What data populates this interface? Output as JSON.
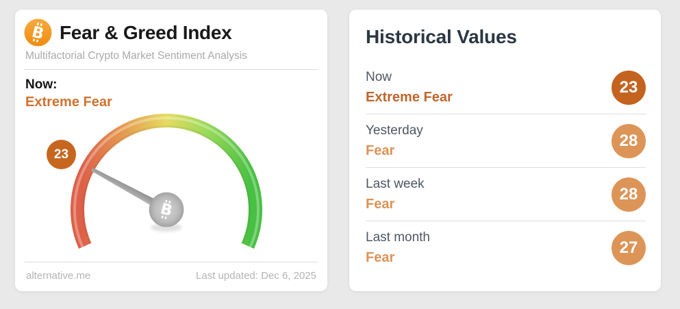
{
  "page": {
    "background": "#e9e9e9"
  },
  "gauge_card": {
    "title": "Fear & Greed Index",
    "subtitle": "Multifactorial Crypto Market Sentiment Analysis",
    "now_label": "Now:",
    "now_sentiment": "Extreme Fear",
    "sentiment_color": "#d0722f",
    "value_badge_color": "#c7661f",
    "footer_site": "alternative.me",
    "footer_updated": "Last updated: Dec 6, 2025",
    "bitcoin_icon_colors": {
      "top": "#f8a93f",
      "bottom": "#ee8c12"
    }
  },
  "historical_card": {
    "title": "Historical Values",
    "rows": [
      {
        "label": "Now",
        "sentiment": "Extreme Fear",
        "value": 23,
        "badge_color": "#c4631f",
        "sentiment_color": "#c0652c"
      },
      {
        "label": "Yesterday",
        "sentiment": "Fear",
        "value": 28,
        "badge_color": "#dd9457",
        "sentiment_color": "#dd9254"
      },
      {
        "label": "Last week",
        "sentiment": "Fear",
        "value": 28,
        "badge_color": "#dd9457",
        "sentiment_color": "#dd9254"
      },
      {
        "label": "Last month",
        "sentiment": "Fear",
        "value": 27,
        "badge_color": "#dd9457",
        "sentiment_color": "#dd9254"
      }
    ]
  },
  "chart_data": {
    "type": "gauge",
    "title": "Fear & Greed Index",
    "value": 23,
    "classification": "Extreme Fear",
    "range": [
      0,
      100
    ],
    "start_angle_deg": 204,
    "end_angle_deg": -24,
    "scale_gradient": [
      "#dd6049",
      "#e59a50",
      "#e5db63",
      "#9bda5a",
      "#48c043"
    ],
    "needle_color": "#9e9e9e",
    "historical": [
      {
        "period": "Now",
        "value": 23,
        "classification": "Extreme Fear"
      },
      {
        "period": "Yesterday",
        "value": 28,
        "classification": "Fear"
      },
      {
        "period": "Last week",
        "value": 28,
        "classification": "Fear"
      },
      {
        "period": "Last month",
        "value": 27,
        "classification": "Fear"
      }
    ]
  }
}
